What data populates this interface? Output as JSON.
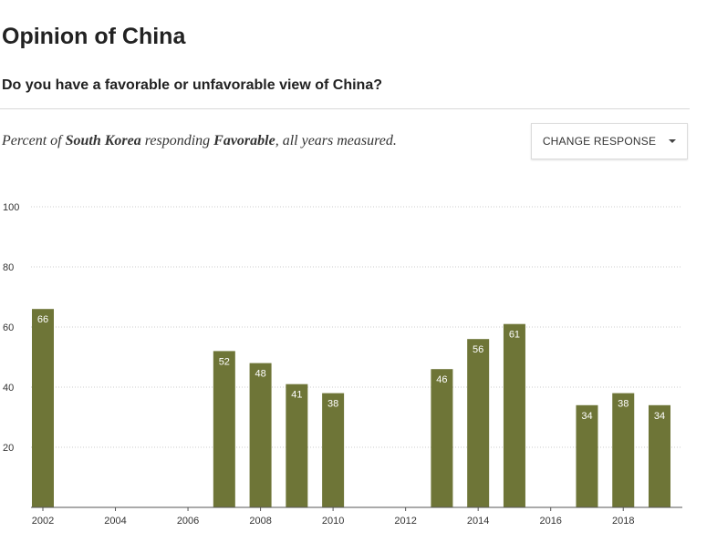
{
  "header": {
    "title": "Opinion of China",
    "question": "Do you have a favorable or unfavorable view of China?"
  },
  "subtitle": {
    "prefix": "Percent of ",
    "country": "South Korea",
    "middle": " responding ",
    "response": "Favorable",
    "suffix": ", all years measured."
  },
  "controls": {
    "change_response_label": "CHANGE RESPONSE",
    "caret_icon": "caret-down-icon"
  },
  "colors": {
    "bar": "#6e7537",
    "bar_label": "#ffffff",
    "axis": "#555555",
    "grid": "#cccccc",
    "tick_text": "#333333"
  },
  "chart_data": {
    "type": "bar",
    "x": [
      2002,
      2007,
      2008,
      2009,
      2010,
      2013,
      2014,
      2015,
      2017,
      2018,
      2019
    ],
    "values": [
      66,
      52,
      48,
      41,
      38,
      46,
      56,
      61,
      34,
      38,
      34
    ],
    "xlim": [
      2002,
      2019
    ],
    "ylim": [
      0,
      100
    ],
    "yticks": [
      20,
      40,
      60,
      80,
      100
    ],
    "xticks": [
      2002,
      2004,
      2006,
      2008,
      2010,
      2012,
      2014,
      2016,
      2018
    ],
    "grid": "horizontal dotted"
  }
}
